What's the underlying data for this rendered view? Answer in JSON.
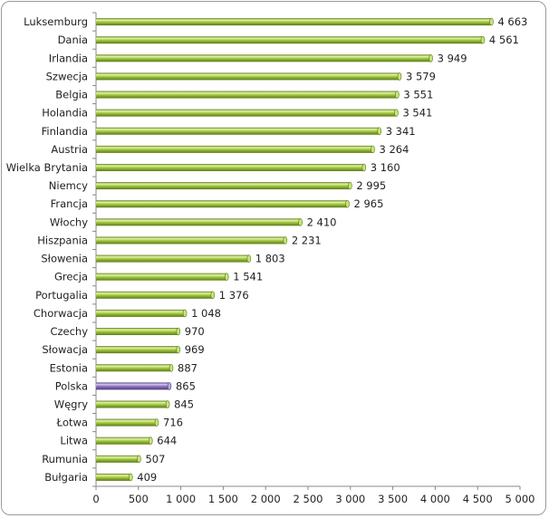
{
  "chart_data": {
    "type": "bar",
    "orientation": "horizontal",
    "categories": [
      "Luksemburg",
      "Dania",
      "Irlandia",
      "Szwecja",
      "Belgia",
      "Holandia",
      "Finlandia",
      "Austria",
      "Wielka Brytania",
      "Niemcy",
      "Francja",
      "Włochy",
      "Hiszpania",
      "Słowenia",
      "Grecja",
      "Portugalia",
      "Chorwacja",
      "Czechy",
      "Słowacja",
      "Estonia",
      "Polska",
      "Węgry",
      "Łotwa",
      "Litwa",
      "Rumunia",
      "Bułgaria"
    ],
    "values": [
      4663,
      4561,
      3949,
      3579,
      3551,
      3541,
      3341,
      3264,
      3160,
      2995,
      2965,
      2410,
      2231,
      1803,
      1541,
      1376,
      1048,
      970,
      969,
      887,
      865,
      845,
      716,
      644,
      507,
      409
    ],
    "value_labels": [
      "4 663",
      "4 561",
      "3 949",
      "3 579",
      "3 551",
      "3 541",
      "3 341",
      "3 264",
      "3 160",
      "2 995",
      "2 965",
      "2 410",
      "2 231",
      "1 803",
      "1 541",
      "1 376",
      "1 048",
      "970",
      "969",
      "887",
      "865",
      "845",
      "716",
      "644",
      "507",
      "409"
    ],
    "highlight": "Polska",
    "xlim": [
      0,
      5000
    ],
    "xticks": [
      0,
      500,
      1000,
      1500,
      2000,
      2500,
      3000,
      3500,
      4000,
      4500,
      5000
    ],
    "xtick_labels": [
      "0",
      "500",
      "1 000",
      "1 500",
      "2 000",
      "2 500",
      "3 000",
      "3 500",
      "4 000",
      "4 500",
      "5 000"
    ],
    "grid": false,
    "legend": "none",
    "colors": {
      "bar": "#9dc43c",
      "highlight": "#8d70c0"
    }
  }
}
